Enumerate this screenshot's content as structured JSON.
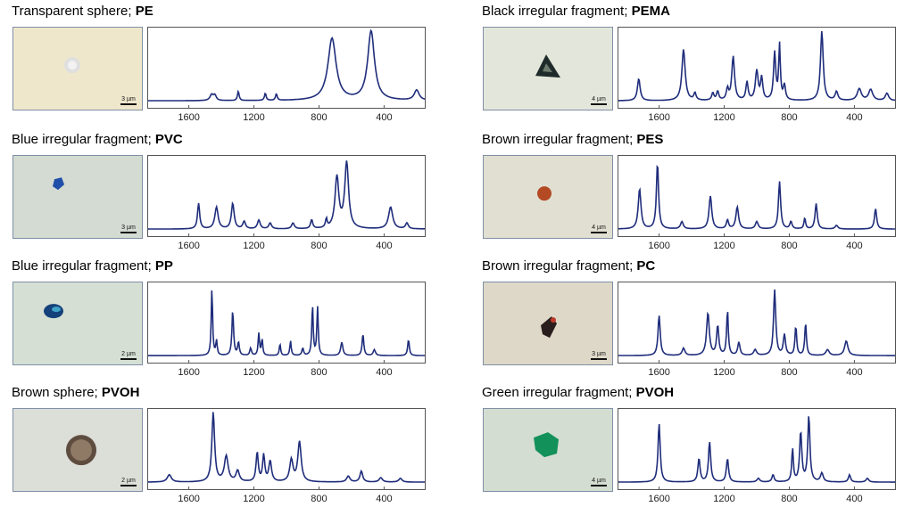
{
  "colors": {
    "line": "#1f2d7b",
    "frame": "#555555"
  },
  "x_ticks": [
    "1600",
    "1200",
    "800",
    "400"
  ],
  "chart_data": [
    {
      "type": "line",
      "title_text": "Transparent sphere; ",
      "polymer": "PE",
      "scale_text": "3 µm",
      "photo": {
        "bg": "#efe7cc",
        "particle": "transparent-sphere",
        "pcolor": "#d9dde2"
      },
      "xlim": [
        1850,
        150
      ],
      "peaks": [
        [
          1460,
          0.08,
          12
        ],
        [
          1440,
          0.07,
          10
        ],
        [
          1296,
          0.13,
          6
        ],
        [
          1130,
          0.1,
          6
        ],
        [
          1062,
          0.09,
          6
        ],
        [
          720,
          0.85,
          30
        ],
        [
          480,
          0.95,
          25
        ],
        [
          200,
          0.14,
          18
        ]
      ]
    },
    {
      "type": "line",
      "title_text": "Black irregular fragment; ",
      "polymer": "PEMA",
      "scale_text": "4 µm",
      "photo": {
        "bg": "#e3e7db",
        "particle": "black-triangle",
        "pcolor": "#1f2a2a"
      },
      "xlim": [
        1850,
        150
      ],
      "peaks": [
        [
          1725,
          0.3,
          10
        ],
        [
          1450,
          0.7,
          12
        ],
        [
          1380,
          0.1,
          8
        ],
        [
          1270,
          0.1,
          8
        ],
        [
          1240,
          0.12,
          8
        ],
        [
          1180,
          0.15,
          8
        ],
        [
          1145,
          0.6,
          10
        ],
        [
          1060,
          0.25,
          8
        ],
        [
          1000,
          0.4,
          10
        ],
        [
          970,
          0.3,
          8
        ],
        [
          890,
          0.65,
          8
        ],
        [
          860,
          0.75,
          6
        ],
        [
          830,
          0.2,
          8
        ],
        [
          600,
          0.95,
          10
        ],
        [
          510,
          0.12,
          10
        ],
        [
          370,
          0.16,
          15
        ],
        [
          300,
          0.15,
          15
        ],
        [
          200,
          0.1,
          12
        ]
      ]
    },
    {
      "type": "line",
      "title_text": "Blue irregular fragment; ",
      "polymer": "PVC",
      "scale_text": "3 µm",
      "photo": {
        "bg": "#d3dbd2",
        "particle": "blue-fragment",
        "pcolor": "#1f4fa8"
      },
      "xlim": [
        1850,
        150
      ],
      "peaks": [
        [
          1540,
          0.35,
          8
        ],
        [
          1430,
          0.3,
          12
        ],
        [
          1330,
          0.35,
          10
        ],
        [
          1260,
          0.1,
          10
        ],
        [
          1170,
          0.12,
          10
        ],
        [
          1100,
          0.08,
          10
        ],
        [
          960,
          0.08,
          10
        ],
        [
          845,
          0.12,
          8
        ],
        [
          755,
          0.12,
          6
        ],
        [
          690,
          0.7,
          14
        ],
        [
          630,
          0.9,
          14
        ],
        [
          360,
          0.3,
          15
        ],
        [
          260,
          0.08,
          10
        ]
      ]
    },
    {
      "type": "line",
      "title_text": "Brown irregular fragment; ",
      "polymer": "PES",
      "scale_text": "4 µm",
      "photo": {
        "bg": "#e1dfd2",
        "particle": "brown-sphere",
        "pcolor": "#b34a24"
      },
      "xlim": [
        1850,
        150
      ],
      "peaks": [
        [
          1720,
          0.55,
          10
        ],
        [
          1610,
          0.9,
          8
        ],
        [
          1460,
          0.1,
          10
        ],
        [
          1285,
          0.45,
          10
        ],
        [
          1180,
          0.12,
          8
        ],
        [
          1120,
          0.3,
          10
        ],
        [
          1000,
          0.1,
          10
        ],
        [
          860,
          0.65,
          8
        ],
        [
          790,
          0.1,
          8
        ],
        [
          705,
          0.15,
          6
        ],
        [
          635,
          0.35,
          8
        ],
        [
          510,
          0.05,
          10
        ],
        [
          270,
          0.28,
          8
        ]
      ]
    },
    {
      "type": "line",
      "title_text": "Blue irregular fragment; ",
      "polymer": "PP",
      "scale_text": "2 µm",
      "photo": {
        "bg": "#d5dfd4",
        "particle": "blue-cluster",
        "pcolor": "#14417a"
      },
      "xlim": [
        1850,
        150
      ],
      "peaks": [
        [
          1458,
          0.92,
          5
        ],
        [
          1430,
          0.2,
          5
        ],
        [
          1330,
          0.62,
          6
        ],
        [
          1295,
          0.18,
          6
        ],
        [
          1220,
          0.1,
          6
        ],
        [
          1170,
          0.3,
          5
        ],
        [
          1150,
          0.22,
          5
        ],
        [
          1040,
          0.16,
          5
        ],
        [
          975,
          0.2,
          5
        ],
        [
          900,
          0.1,
          6
        ],
        [
          840,
          0.7,
          5
        ],
        [
          809,
          0.66,
          5
        ],
        [
          660,
          0.18,
          8
        ],
        [
          530,
          0.3,
          6
        ],
        [
          460,
          0.08,
          8
        ],
        [
          250,
          0.22,
          6
        ]
      ]
    },
    {
      "type": "line",
      "title_text": "Brown irregular fragment; ",
      "polymer": "PC",
      "scale_text": "3 µm",
      "photo": {
        "bg": "#ded8c8",
        "particle": "dark-fragment",
        "pcolor": "#2a1d1d"
      },
      "xlim": [
        1850,
        150
      ],
      "peaks": [
        [
          1600,
          0.55,
          8
        ],
        [
          1450,
          0.1,
          10
        ],
        [
          1300,
          0.58,
          10
        ],
        [
          1240,
          0.4,
          8
        ],
        [
          1180,
          0.62,
          6
        ],
        [
          1110,
          0.18,
          8
        ],
        [
          1010,
          0.08,
          10
        ],
        [
          890,
          0.9,
          8
        ],
        [
          830,
          0.28,
          8
        ],
        [
          760,
          0.4,
          6
        ],
        [
          700,
          0.45,
          6
        ],
        [
          565,
          0.08,
          12
        ],
        [
          450,
          0.2,
          12
        ]
      ]
    },
    {
      "type": "line",
      "title_text": "Brown sphere; ",
      "polymer": "PVOH",
      "scale_text": "2 µm",
      "photo": {
        "bg": "#dcded8",
        "particle": "brown-ring",
        "pcolor": "#8f7a66"
      },
      "xlim": [
        1850,
        150
      ],
      "peaks": [
        [
          1720,
          0.1,
          15
        ],
        [
          1450,
          0.95,
          10
        ],
        [
          1370,
          0.35,
          14
        ],
        [
          1300,
          0.15,
          12
        ],
        [
          1180,
          0.4,
          8
        ],
        [
          1140,
          0.36,
          8
        ],
        [
          1100,
          0.28,
          10
        ],
        [
          970,
          0.3,
          12
        ],
        [
          920,
          0.55,
          12
        ],
        [
          620,
          0.08,
          12
        ],
        [
          540,
          0.15,
          10
        ],
        [
          420,
          0.06,
          12
        ],
        [
          300,
          0.05,
          12
        ]
      ]
    },
    {
      "type": "line",
      "title_text": "Green irregular fragment; ",
      "polymer": "PVOH",
      "scale_text": "4 µm",
      "photo": {
        "bg": "#d4ddd1",
        "particle": "green-fragment",
        "pcolor": "#12915a"
      },
      "xlim": [
        1850,
        150
      ],
      "peaks": [
        [
          1600,
          0.8,
          8
        ],
        [
          1600,
          0.0,
          8
        ],
        [
          1355,
          0.32,
          8
        ],
        [
          1290,
          0.55,
          8
        ],
        [
          1180,
          0.32,
          8
        ],
        [
          990,
          0.05,
          10
        ],
        [
          900,
          0.1,
          8
        ],
        [
          780,
          0.45,
          6
        ],
        [
          730,
          0.68,
          8
        ],
        [
          680,
          0.9,
          8
        ],
        [
          600,
          0.12,
          10
        ],
        [
          430,
          0.1,
          8
        ],
        [
          320,
          0.05,
          10
        ]
      ]
    }
  ]
}
